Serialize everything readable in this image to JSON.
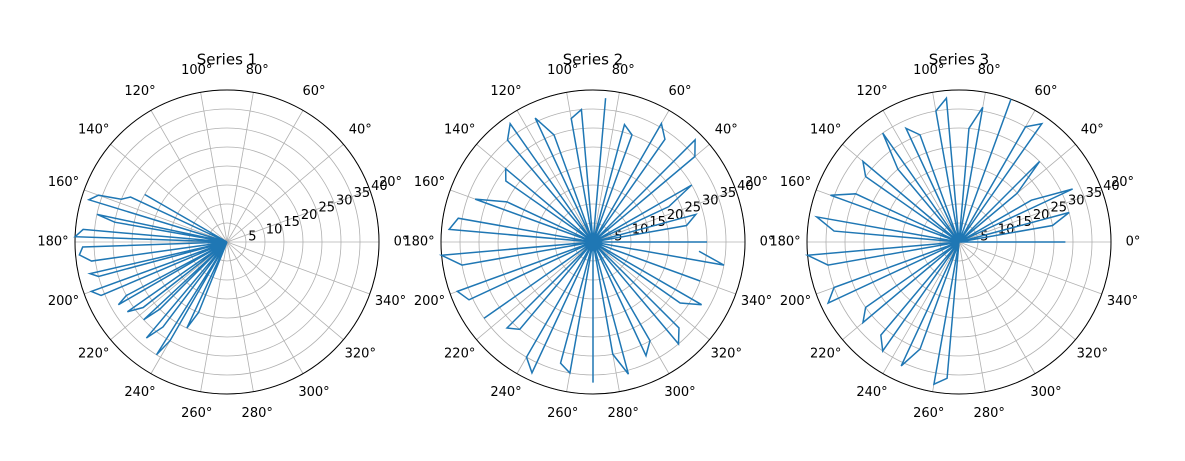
{
  "chart_data": [
    {
      "type": "polar",
      "title": "Series 1",
      "color": "#1f77b4",
      "grid": true,
      "x": [
        150,
        152,
        155,
        158,
        160,
        163,
        165,
        168,
        170,
        172,
        175,
        178,
        180,
        182,
        185,
        188,
        190,
        193,
        195,
        198,
        200,
        203,
        205,
        208,
        210,
        213,
        215,
        218,
        220,
        223,
        225,
        228,
        230,
        233,
        235,
        238,
        240,
        243,
        245,
        248,
        250
      ],
      "values": [
        25,
        0,
        28,
        30,
        36,
        38,
        0,
        35,
        30,
        0,
        38,
        40,
        0,
        38,
        39,
        36,
        0,
        37,
        35,
        0,
        38,
        36,
        0,
        30,
        33,
        0,
        32,
        28,
        0,
        30,
        25,
        0,
        33,
        28,
        0,
        35,
        30,
        0,
        25,
        20,
        0
      ],
      "ylim": [
        0,
        40
      ],
      "yticks": [
        5,
        10,
        15,
        20,
        25,
        30,
        35,
        40
      ],
      "xlim": [
        0,
        360
      ],
      "xticks": [
        {
          "value": 0,
          "label": "0°"
        },
        {
          "value": 20,
          "label": "20°"
        },
        {
          "value": 40,
          "label": "40°"
        },
        {
          "value": 60,
          "label": "60°"
        },
        {
          "value": 80,
          "label": "80°"
        },
        {
          "value": 100,
          "label": "100°"
        },
        {
          "value": 120,
          "label": "120°"
        },
        {
          "value": 140,
          "label": "140°"
        },
        {
          "value": 160,
          "label": "160°"
        },
        {
          "value": 180,
          "label": "180°"
        },
        {
          "value": 200,
          "label": "200°"
        },
        {
          "value": 220,
          "label": "220°"
        },
        {
          "value": 240,
          "label": "240°"
        },
        {
          "value": 260,
          "label": "260°"
        },
        {
          "value": 280,
          "label": "280°"
        },
        {
          "value": 300,
          "label": "300°"
        },
        {
          "value": 320,
          "label": "320°"
        },
        {
          "value": 340,
          "label": "340°"
        }
      ]
    },
    {
      "type": "polar",
      "title": "Series 2",
      "color": "#1f77b4",
      "grid": true,
      "x": [
        0,
        5,
        10,
        15,
        20,
        25,
        30,
        35,
        40,
        45,
        50,
        55,
        60,
        65,
        70,
        75,
        80,
        85,
        90,
        95,
        100,
        105,
        110,
        115,
        120,
        125,
        130,
        135,
        140,
        145,
        150,
        155,
        160,
        165,
        170,
        175,
        180,
        185,
        190,
        195,
        200,
        205,
        210,
        215,
        220,
        225,
        230,
        235,
        240,
        245,
        250,
        255,
        260,
        265,
        270,
        275,
        280,
        285,
        290,
        295,
        300,
        305,
        310,
        315,
        320,
        325,
        330,
        335,
        340,
        345,
        350,
        355
      ],
      "values": [
        30,
        0,
        25,
        28,
        0,
        22,
        30,
        0,
        35,
        38,
        0,
        33,
        36,
        0,
        30,
        32,
        0,
        38,
        0,
        35,
        33,
        0,
        30,
        36,
        0,
        38,
        35,
        0,
        30,
        28,
        0,
        25,
        33,
        0,
        36,
        38,
        0,
        40,
        35,
        0,
        38,
        36,
        0,
        35,
        0,
        32,
        30,
        0,
        35,
        38,
        0,
        33,
        35,
        0,
        37,
        0,
        30,
        36,
        0,
        33,
        30,
        0,
        35,
        32,
        0,
        28,
        33,
        0,
        30,
        0,
        35,
        28
      ],
      "ylim": [
        0,
        40
      ],
      "yticks": [
        5,
        10,
        15,
        20,
        25,
        30,
        35,
        40
      ],
      "xlim": [
        0,
        360
      ],
      "xticks": [
        {
          "value": 0,
          "label": "0°"
        },
        {
          "value": 20,
          "label": "20°"
        },
        {
          "value": 40,
          "label": "40°"
        },
        {
          "value": 60,
          "label": "60°"
        },
        {
          "value": 80,
          "label": "80°"
        },
        {
          "value": 100,
          "label": "100°"
        },
        {
          "value": 120,
          "label": "120°"
        },
        {
          "value": 140,
          "label": "140°"
        },
        {
          "value": 160,
          "label": "160°"
        },
        {
          "value": 180,
          "label": "180°"
        },
        {
          "value": 200,
          "label": "200°"
        },
        {
          "value": 220,
          "label": "220°"
        },
        {
          "value": 240,
          "label": "240°"
        },
        {
          "value": 260,
          "label": "260°"
        },
        {
          "value": 280,
          "label": "280°"
        },
        {
          "value": 300,
          "label": "300°"
        },
        {
          "value": 320,
          "label": "320°"
        },
        {
          "value": 340,
          "label": "340°"
        }
      ]
    },
    {
      "type": "polar",
      "title": "Series 3",
      "color": "#1f77b4",
      "grid": true,
      "x": [
        0,
        5,
        10,
        15,
        20,
        25,
        30,
        35,
        40,
        45,
        50,
        55,
        60,
        65,
        70,
        75,
        80,
        85,
        90,
        95,
        100,
        105,
        110,
        115,
        120,
        125,
        130,
        135,
        140,
        145,
        150,
        155,
        160,
        165,
        170,
        175,
        180,
        185,
        190,
        195,
        200,
        205,
        210,
        215,
        220,
        225,
        230,
        235,
        240,
        245,
        250,
        255,
        260,
        265,
        270
      ],
      "values": [
        28,
        0,
        25,
        30,
        0,
        33,
        22,
        0,
        20,
        30,
        0,
        38,
        35,
        0,
        40,
        0,
        36,
        30,
        0,
        38,
        35,
        0,
        30,
        33,
        0,
        35,
        25,
        0,
        33,
        30,
        0,
        30,
        36,
        0,
        38,
        33,
        0,
        40,
        35,
        0,
        35,
        38,
        0,
        30,
        33,
        0,
        32,
        35,
        0,
        36,
        30,
        0,
        38,
        36,
        0
      ],
      "ylim": [
        0,
        40
      ],
      "yticks": [
        5,
        10,
        15,
        20,
        25,
        30,
        35,
        40
      ],
      "xlim": [
        0,
        360
      ],
      "xticks": [
        {
          "value": 0,
          "label": "0°"
        },
        {
          "value": 20,
          "label": "20°"
        },
        {
          "value": 40,
          "label": "40°"
        },
        {
          "value": 60,
          "label": "60°"
        },
        {
          "value": 80,
          "label": "80°"
        },
        {
          "value": 100,
          "label": "100°"
        },
        {
          "value": 120,
          "label": "120°"
        },
        {
          "value": 140,
          "label": "140°"
        },
        {
          "value": 160,
          "label": "160°"
        },
        {
          "value": 180,
          "label": "180°"
        },
        {
          "value": 200,
          "label": "200°"
        },
        {
          "value": 220,
          "label": "220°"
        },
        {
          "value": 240,
          "label": "240°"
        },
        {
          "value": 260,
          "label": "260°"
        },
        {
          "value": 280,
          "label": "280°"
        },
        {
          "value": 300,
          "label": "300°"
        },
        {
          "value": 320,
          "label": "320°"
        },
        {
          "value": 340,
          "label": "340°"
        }
      ]
    }
  ]
}
